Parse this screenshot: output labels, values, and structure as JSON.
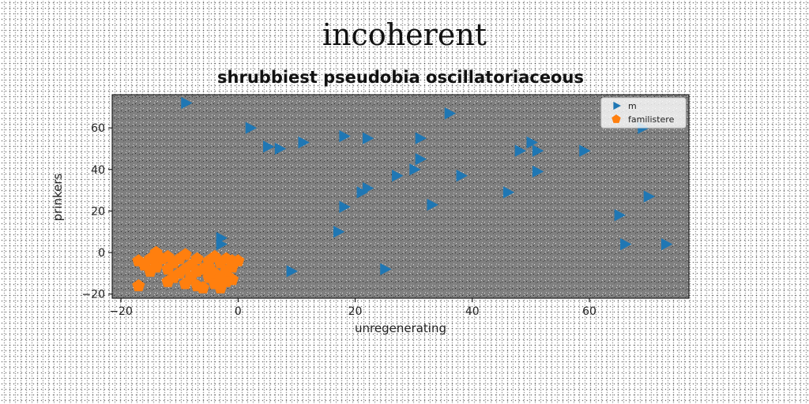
{
  "figure": {
    "suptitle": "incoherent"
  },
  "chart_data": {
    "type": "scatter",
    "title": "shrubbiest pseudobia oscillatoriaceous",
    "xlabel": "unregenerating",
    "ylabel": "prinkers",
    "xlim": [
      -21.5,
      77
    ],
    "ylim": [
      -22,
      76
    ],
    "xticks": [
      -20,
      0,
      20,
      40,
      60
    ],
    "yticks": [
      -20,
      0,
      20,
      40,
      60
    ],
    "grid": false,
    "legend_position": "upper right",
    "background_color": "#808080",
    "series": [
      {
        "name": "m",
        "marker": "triangle-right",
        "color": "#1f77b4",
        "points": [
          [
            -9,
            72
          ],
          [
            2,
            60
          ],
          [
            5,
            51
          ],
          [
            7,
            50
          ],
          [
            11,
            53
          ],
          [
            18,
            56
          ],
          [
            22,
            55
          ],
          [
            31,
            55
          ],
          [
            36,
            67
          ],
          [
            50,
            53
          ],
          [
            51,
            49
          ],
          [
            48,
            49
          ],
          [
            59,
            49
          ],
          [
            69,
            60
          ],
          [
            31,
            45
          ],
          [
            30,
            40
          ],
          [
            27,
            37
          ],
          [
            38,
            37
          ],
          [
            51,
            39
          ],
          [
            22,
            31
          ],
          [
            21,
            29
          ],
          [
            46,
            29
          ],
          [
            70,
            27
          ],
          [
            18,
            22
          ],
          [
            33,
            23
          ],
          [
            65,
            18
          ],
          [
            17,
            10
          ],
          [
            -3,
            7
          ],
          [
            -3,
            4
          ],
          [
            66,
            4
          ],
          [
            73,
            4
          ],
          [
            9,
            -9
          ],
          [
            25,
            -8
          ]
        ]
      },
      {
        "name": "familistere",
        "marker": "pentagon",
        "color": "#ff7f0e",
        "points": [
          [
            -17,
            -4
          ],
          [
            -16,
            -6
          ],
          [
            -15,
            -3
          ],
          [
            -14,
            -5
          ],
          [
            -13,
            -3
          ],
          [
            -14,
            0
          ],
          [
            -12,
            -2
          ],
          [
            -11,
            -5
          ],
          [
            -10,
            -3
          ],
          [
            -9,
            -1
          ],
          [
            -8,
            -6
          ],
          [
            -7,
            -3
          ],
          [
            -6,
            -8
          ],
          [
            -5,
            -4
          ],
          [
            -4,
            -2
          ],
          [
            -3,
            -5
          ],
          [
            -2,
            -3
          ],
          [
            -1,
            -4
          ],
          [
            0,
            -4
          ],
          [
            -17,
            -16
          ],
          [
            -12,
            -14
          ],
          [
            -10,
            -10
          ],
          [
            -9,
            -15
          ],
          [
            -8,
            -12
          ],
          [
            -7,
            -16
          ],
          [
            -6,
            -17
          ],
          [
            -5,
            -12
          ],
          [
            -4,
            -15
          ],
          [
            -3,
            -17
          ],
          [
            -2,
            -14
          ],
          [
            -1,
            -13
          ],
          [
            -4,
            -10
          ],
          [
            -7,
            -9
          ],
          [
            -12,
            -8
          ],
          [
            -15,
            -9
          ],
          [
            -5,
            -7
          ],
          [
            -2,
            -9
          ],
          [
            -11,
            -12
          ],
          [
            -9,
            -8
          ],
          [
            -3,
            -12
          ],
          [
            -1,
            -7
          ],
          [
            -14,
            -7
          ]
        ]
      }
    ]
  }
}
